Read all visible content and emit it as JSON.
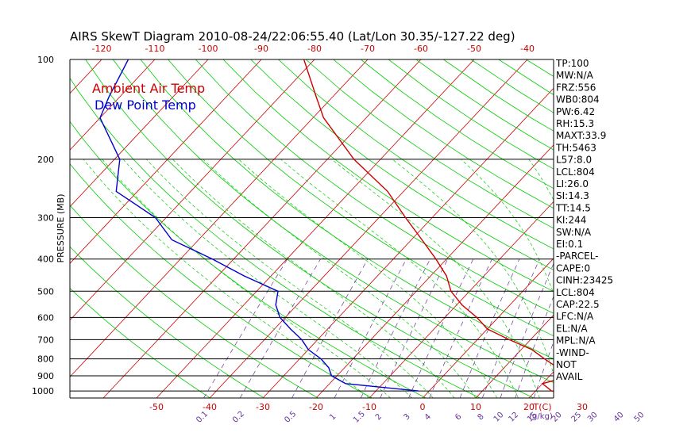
{
  "header": {
    "title": "AIRS SkewT Diagram 2010-08-24/22:06:55.40 (Lat/Lon 30.35/-127.22 deg)"
  },
  "legend": {
    "ambient": "Ambient Air Temp",
    "dewpoint": "Dew Point Temp"
  },
  "colors": {
    "temp_line": "#cc0000",
    "dew_line": "#0000cc",
    "dry_adiabat": "#00cc00",
    "isotherm": "#cc0000",
    "mixing_ratio": "#663399",
    "moist_adiabat": "#00cc00"
  },
  "chart_data": {
    "type": "line",
    "title": "AIRS SkewT Diagram 2010-08-24/22:06:55.40 (Lat/Lon 30.35/-127.22 deg)",
    "ylabel": "PRESSURE (MB)",
    "xlabel": "T(C)",
    "pressure_axis": {
      "scale": "log",
      "ylim": [
        1050,
        100
      ],
      "ticks": [
        100,
        200,
        300,
        400,
        500,
        600,
        700,
        800,
        900,
        1000
      ],
      "tick_labels": [
        "100",
        "200",
        "300",
        "400",
        "500",
        "600",
        "700",
        "800",
        "900",
        "1000"
      ]
    },
    "top_temperature_ticks": [
      -120,
      -110,
      -100,
      -90,
      -80,
      -70,
      -60,
      -50,
      -40
    ],
    "top_temperature_labels": [
      "-120",
      "-110",
      "-100",
      "-90",
      "-80",
      "-70",
      "-60",
      "-50",
      "-40"
    ],
    "bottom_temperature_ticks": [
      -50,
      -40,
      -30,
      -20,
      -10,
      0,
      10,
      20,
      30
    ],
    "bottom_temperature_labels": [
      "-50",
      "-40",
      "-30",
      "-20",
      "-10",
      "0",
      "10",
      "20",
      "30"
    ],
    "bottom_axis_unit": "T(C)",
    "mixing_ratio_labels": [
      "0.1",
      "0.2",
      "0.5",
      "1",
      "1.5",
      "2",
      "3",
      "4",
      "6",
      "8",
      "10",
      "12",
      "15",
      "20",
      "25",
      "30",
      "40",
      "50"
    ],
    "mixing_ratio_unit": "(g/kg)",
    "series": [
      {
        "name": "Ambient Air Temp",
        "pressure": [
          1013,
          1000,
          950,
          900,
          850,
          800,
          750,
          700,
          650,
          600,
          550,
          500,
          450,
          400,
          350,
          300,
          250,
          200,
          150,
          130,
          100
        ],
        "temperature": [
          25.5,
          23.0,
          20.0,
          24.0,
          20.0,
          16.0,
          12.0,
          6.0,
          0.0,
          -4.0,
          -9.0,
          -13.5,
          -17.0,
          -22.0,
          -28.0,
          -35.0,
          -43.0,
          -55.0,
          -68.0,
          -73.0,
          -82.0
        ]
      },
      {
        "name": "Dew Point Temp",
        "pressure": [
          1000,
          950,
          900,
          850,
          800,
          750,
          700,
          650,
          600,
          550,
          500,
          450,
          400,
          350,
          300,
          250,
          200,
          150,
          130,
          100
        ],
        "temperature": [
          -2.0,
          -17.0,
          -21.0,
          -23.0,
          -26.0,
          -30.0,
          -33.0,
          -37.0,
          -41.0,
          -44.0,
          -46.0,
          -55.0,
          -64.0,
          -75.0,
          -82.0,
          -94.0,
          -99.0,
          -110.0,
          -112.0,
          -115.0
        ]
      }
    ],
    "grid": true
  },
  "indices": [
    "TP:100",
    "MW:N/A",
    "FRZ:556",
    "WB0:804",
    "PW:6.42",
    "RH:15.3",
    "MAXT:33.9",
    "TH:5463",
    "L57:8.0",
    "LCL:804",
    "LI:26.0",
    "SI:14.3",
    "TT:14.5",
    "KI:244",
    "SW:N/A",
    "EI:0.1",
    "-PARCEL-",
    "CAPE:0",
    "CINH:23425",
    "LCL:804",
    "CAP:22.5",
    "LFC:N/A",
    "EL:N/A",
    "MPL:N/A",
    "-WIND-",
    "NOT",
    "AVAIL"
  ]
}
